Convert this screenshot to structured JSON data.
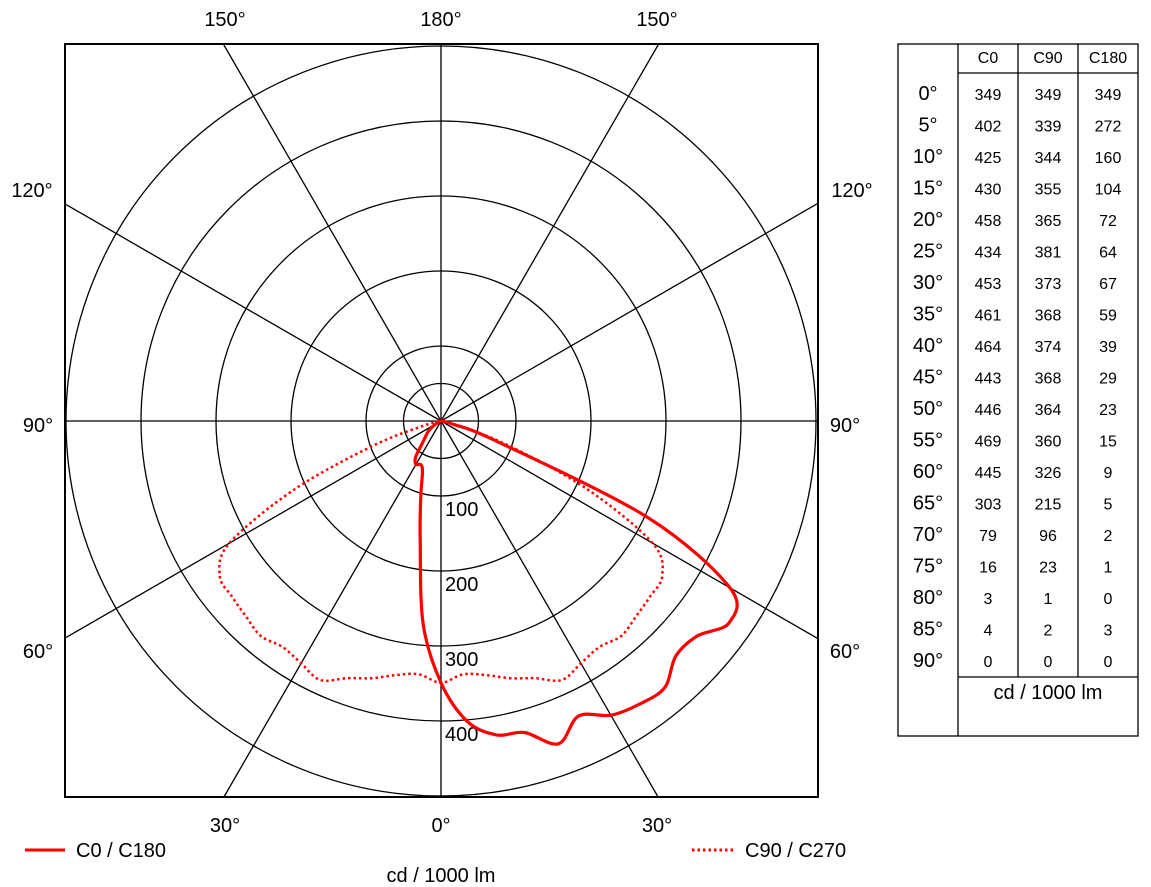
{
  "chart_data": {
    "type": "polar",
    "unit": "cd / 1000 lm",
    "angle_labels_top": [
      "150°",
      "180°",
      "150°"
    ],
    "angle_labels_upper_side": [
      "120°",
      "120°"
    ],
    "angle_labels_mid_side": [
      "90°",
      "90°"
    ],
    "angle_labels_lower_side": [
      "60°",
      "60°"
    ],
    "angle_labels_bottom": [
      "30°",
      "0°",
      "30°"
    ],
    "radial_ticks": [
      "100",
      "200",
      "300",
      "400"
    ],
    "radial_tick_values": [
      100,
      200,
      300,
      400
    ],
    "max_radius_value": 500,
    "legend": [
      {
        "name": "C0 / C180",
        "color": "#ff0000",
        "style": "solid"
      },
      {
        "name": "C90 / C270",
        "color": "#ff0000",
        "style": "dotted"
      }
    ],
    "series": [
      {
        "name": "C0",
        "angles": [
          0,
          5,
          10,
          15,
          20,
          25,
          30,
          35,
          40,
          45,
          50,
          55,
          60,
          65,
          70,
          75,
          80,
          85,
          90
        ],
        "values": [
          349,
          402,
          425,
          430,
          458,
          434,
          453,
          461,
          464,
          443,
          446,
          469,
          445,
          303,
          79,
          16,
          3,
          4,
          0
        ]
      },
      {
        "name": "C90",
        "angles": [
          0,
          5,
          10,
          15,
          20,
          25,
          30,
          35,
          40,
          45,
          50,
          55,
          60,
          65,
          70,
          75,
          80,
          85,
          90
        ],
        "values": [
          349,
          339,
          344,
          355,
          365,
          381,
          373,
          368,
          374,
          368,
          364,
          360,
          326,
          215,
          96,
          23,
          1,
          2,
          0
        ]
      },
      {
        "name": "C180",
        "angles": [
          0,
          5,
          10,
          15,
          20,
          25,
          30,
          35,
          40,
          45,
          50,
          55,
          60,
          65,
          70,
          75,
          80,
          85,
          90
        ],
        "values": [
          349,
          272,
          160,
          104,
          72,
          64,
          67,
          59,
          39,
          29,
          23,
          15,
          9,
          5,
          2,
          1,
          0,
          3,
          0
        ]
      }
    ],
    "table": {
      "columns": [
        "C0",
        "C90",
        "C180"
      ],
      "row_labels": [
        "0°",
        "5°",
        "10°",
        "15°",
        "20°",
        "25°",
        "30°",
        "35°",
        "40°",
        "45°",
        "50°",
        "55°",
        "60°",
        "65°",
        "70°",
        "75°",
        "80°",
        "85°",
        "90°"
      ],
      "unit_label": "cd / 1000 lm"
    }
  }
}
